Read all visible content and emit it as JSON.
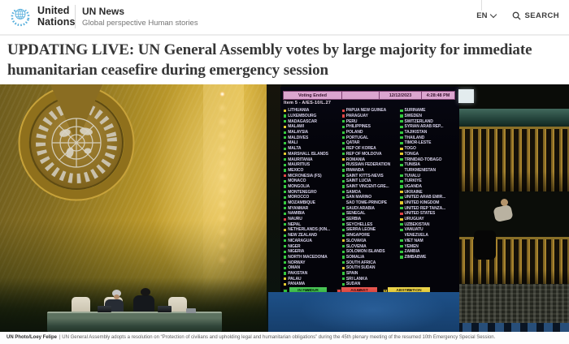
{
  "header": {
    "org_name_line1": "United",
    "org_name_line2": "Nations",
    "site_name": "UN News",
    "tagline": "Global perspective Human stories",
    "language_label": "EN",
    "search_label": "SEARCH"
  },
  "article": {
    "headline": "UPDATING LIVE: UN General Assembly votes by large majority for immediate humanitarian ceasefire during emergency session",
    "photo_credit": "UN Photo/Loey Felipe",
    "photo_caption": "| UN General Assembly adopts a resolution on “Protection of civilians and upholding legal and humanitarian obligations” during the 45th plenary meeting of the resumed 10th Emergency Special Session."
  },
  "voting_board": {
    "status": "Voting Ended",
    "date": "12/12/2023",
    "time": "4:28:48 PM",
    "item": "Item 5 - A/ES-10/L.27",
    "summary": [
      {
        "label": "IN FAVOUR",
        "value": "153"
      },
      {
        "label": "AGAINST",
        "value": "10"
      },
      {
        "label": "ABSTENTION",
        "value": "23"
      }
    ],
    "vote_colors": {
      "yes": "#35c93f",
      "no": "#e04545",
      "abstain": "#e3c92e"
    },
    "abstention_icon_glyph": "✕",
    "columns": [
      [
        {
          "n": "LITHUANIA",
          "v": "a"
        },
        {
          "n": "LUXEMBOURG",
          "v": "y"
        },
        {
          "n": "MADAGASCAR",
          "v": "y"
        },
        {
          "n": "MALAWI",
          "v": "a"
        },
        {
          "n": "MALAYSIA",
          "v": "y"
        },
        {
          "n": "MALDIVES",
          "v": "y"
        },
        {
          "n": "MALI",
          "v": "y"
        },
        {
          "n": "MALTA",
          "v": "y"
        },
        {
          "n": "MARSHALL ISLANDS",
          "v": "a"
        },
        {
          "n": "MAURITANIA",
          "v": "y"
        },
        {
          "n": "MAURITIUS",
          "v": "y"
        },
        {
          "n": "MEXICO",
          "v": "y"
        },
        {
          "n": "MICRONESIA (FS)",
          "v": "n"
        },
        {
          "n": "MONACO",
          "v": "y"
        },
        {
          "n": "MONGOLIA",
          "v": "y"
        },
        {
          "n": "MONTENEGRO",
          "v": "y"
        },
        {
          "n": "MOROCCO",
          "v": "y"
        },
        {
          "n": "MOZAMBIQUE",
          "v": "y"
        },
        {
          "n": "MYANMAR",
          "v": "y"
        },
        {
          "n": "NAMIBIA",
          "v": "y"
        },
        {
          "n": "NAURU",
          "v": "n"
        },
        {
          "n": "NEPAL",
          "v": "y"
        },
        {
          "n": "NETHERLANDS (KIN...",
          "v": "a"
        },
        {
          "n": "NEW ZEALAND",
          "v": "y"
        },
        {
          "n": "NICARAGUA",
          "v": "y"
        },
        {
          "n": "NIGER",
          "v": "y"
        },
        {
          "n": "NIGERIA",
          "v": "y"
        },
        {
          "n": "NORTH MACEDONIA",
          "v": "y"
        },
        {
          "n": "NORWAY",
          "v": "y"
        },
        {
          "n": "OMAN",
          "v": "y"
        },
        {
          "n": "PAKISTAN",
          "v": "y"
        },
        {
          "n": "PALAU",
          "v": "a"
        },
        {
          "n": "PANAMA",
          "v": "a"
        }
      ],
      [
        {
          "n": "PAPUA NEW GUINEA",
          "v": "n"
        },
        {
          "n": "PARAGUAY",
          "v": "n"
        },
        {
          "n": "PERU",
          "v": "y"
        },
        {
          "n": "PHILIPPINES",
          "v": "y"
        },
        {
          "n": "POLAND",
          "v": "y"
        },
        {
          "n": "PORTUGAL",
          "v": "y"
        },
        {
          "n": "QATAR",
          "v": "y"
        },
        {
          "n": "REP OF KOREA",
          "v": "y"
        },
        {
          "n": "REP OF MOLDOVA",
          "v": "y"
        },
        {
          "n": "ROMANIA",
          "v": "a"
        },
        {
          "n": "RUSSIAN FEDERATION",
          "v": "y"
        },
        {
          "n": "RWANDA",
          "v": "y"
        },
        {
          "n": "SAINT KITTS-NEVIS",
          "v": "y"
        },
        {
          "n": "SAINT LUCIA",
          "v": "y"
        },
        {
          "n": "SAINT VINCENT-GRE...",
          "v": "y"
        },
        {
          "n": "SAMOA",
          "v": "y"
        },
        {
          "n": "SAN MARINO",
          "v": "y"
        },
        {
          "n": "SAO TOME-PRINCIPE",
          "v": "x"
        },
        {
          "n": "SAUDI ARABIA",
          "v": "y"
        },
        {
          "n": "SENEGAL",
          "v": "y"
        },
        {
          "n": "SERBIA",
          "v": "y"
        },
        {
          "n": "SEYCHELLES",
          "v": "y"
        },
        {
          "n": "SIERRA LEONE",
          "v": "y"
        },
        {
          "n": "SINGAPORE",
          "v": "y"
        },
        {
          "n": "SLOVAKIA",
          "v": "a"
        },
        {
          "n": "SLOVENIA",
          "v": "y"
        },
        {
          "n": "SOLOMON ISLANDS",
          "v": "y"
        },
        {
          "n": "SOMALIA",
          "v": "y"
        },
        {
          "n": "SOUTH AFRICA",
          "v": "y"
        },
        {
          "n": "SOUTH SUDAN",
          "v": "a"
        },
        {
          "n": "SPAIN",
          "v": "y"
        },
        {
          "n": "SRI LANKA",
          "v": "y"
        },
        {
          "n": "SUDAN",
          "v": "y"
        }
      ],
      [
        {
          "n": "SURINAME",
          "v": "y"
        },
        {
          "n": "SWEDEN",
          "v": "y"
        },
        {
          "n": "SWITZERLAND",
          "v": "y"
        },
        {
          "n": "SYRIAN ARAB REP...",
          "v": "y"
        },
        {
          "n": "TAJIKISTAN",
          "v": "y"
        },
        {
          "n": "THAILAND",
          "v": "y"
        },
        {
          "n": "TIMOR-LESTE",
          "v": "y"
        },
        {
          "n": "TOGO",
          "v": "a"
        },
        {
          "n": "TONGA",
          "v": "a"
        },
        {
          "n": "TRINIDAD-TOBAGO",
          "v": "y"
        },
        {
          "n": "TUNISIA",
          "v": "y"
        },
        {
          "n": "TURKMENISTAN",
          "v": "x"
        },
        {
          "n": "TUVALU",
          "v": "y"
        },
        {
          "n": "TÜRKIYE",
          "v": "y"
        },
        {
          "n": "UGANDA",
          "v": "y"
        },
        {
          "n": "UKRAINE",
          "v": "a"
        },
        {
          "n": "UNITED ARAB EMIR...",
          "v": "y"
        },
        {
          "n": "UNITED KINGDOM",
          "v": "a"
        },
        {
          "n": "UNITED REP TANZA...",
          "v": "y"
        },
        {
          "n": "UNITED STATES",
          "v": "n"
        },
        {
          "n": "URUGUAY",
          "v": "a"
        },
        {
          "n": "UZBEKISTAN",
          "v": "y"
        },
        {
          "n": "VANUATU",
          "v": "y"
        },
        {
          "n": "VENEZUELA",
          "v": "x"
        },
        {
          "n": "VIET NAM",
          "v": "y"
        },
        {
          "n": "YEMEN",
          "v": "y"
        },
        {
          "n": "ZAMBIA",
          "v": "y"
        },
        {
          "n": "ZIMBABWE",
          "v": "y"
        }
      ]
    ]
  }
}
